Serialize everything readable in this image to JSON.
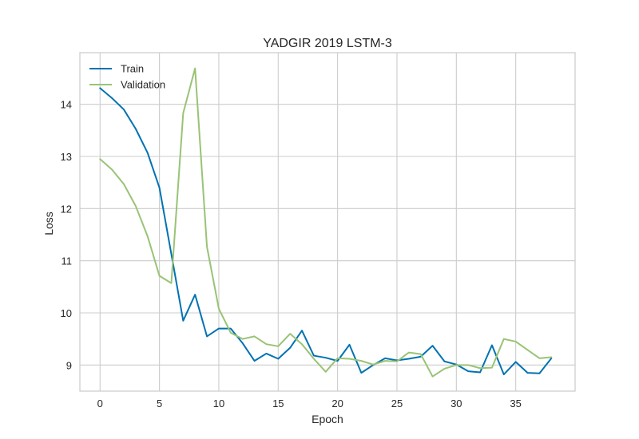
{
  "chart_data": {
    "type": "line",
    "title": "YADGIR 2019 LSTM-3",
    "xlabel": "Epoch",
    "ylabel": "Loss",
    "xlim": [
      -1.7,
      40.0
    ],
    "ylim": [
      8.5,
      14.99
    ],
    "xticks": [
      0,
      5,
      10,
      15,
      20,
      25,
      30,
      35
    ],
    "yticks": [
      9,
      10,
      11,
      12,
      13,
      14
    ],
    "grid": true,
    "legend_position": "top-left",
    "x": [
      0,
      1,
      2,
      3,
      4,
      5,
      6,
      7,
      8,
      9,
      10,
      11,
      12,
      13,
      14,
      15,
      16,
      17,
      18,
      19,
      20,
      21,
      22,
      23,
      24,
      25,
      26,
      27,
      28,
      29,
      30,
      31,
      32,
      33,
      34,
      35,
      36,
      37,
      38
    ],
    "series": [
      {
        "name": "Train",
        "color": "#0072b2",
        "values": [
          14.31,
          14.12,
          13.9,
          13.53,
          13.07,
          12.4,
          11.13,
          9.85,
          10.35,
          9.55,
          9.7,
          9.7,
          9.42,
          9.08,
          9.22,
          9.12,
          9.33,
          9.66,
          9.18,
          9.14,
          9.08,
          9.39,
          8.85,
          9.0,
          9.13,
          9.09,
          9.12,
          9.16,
          9.37,
          9.07,
          9.01,
          8.88,
          8.86,
          9.38,
          8.82,
          9.06,
          8.85,
          8.84,
          9.13
        ]
      },
      {
        "name": "Validation",
        "color": "#99c375",
        "values": [
          12.95,
          12.75,
          12.47,
          12.05,
          11.47,
          10.71,
          10.57,
          13.83,
          14.69,
          11.27,
          10.08,
          9.62,
          9.5,
          9.55,
          9.4,
          9.36,
          9.6,
          9.4,
          9.12,
          8.87,
          9.13,
          9.12,
          9.08,
          9.01,
          9.08,
          9.07,
          9.24,
          9.21,
          8.78,
          8.93,
          9.0,
          9.0,
          8.94,
          8.95,
          9.5,
          9.45,
          9.29,
          9.13,
          9.15
        ]
      }
    ]
  }
}
